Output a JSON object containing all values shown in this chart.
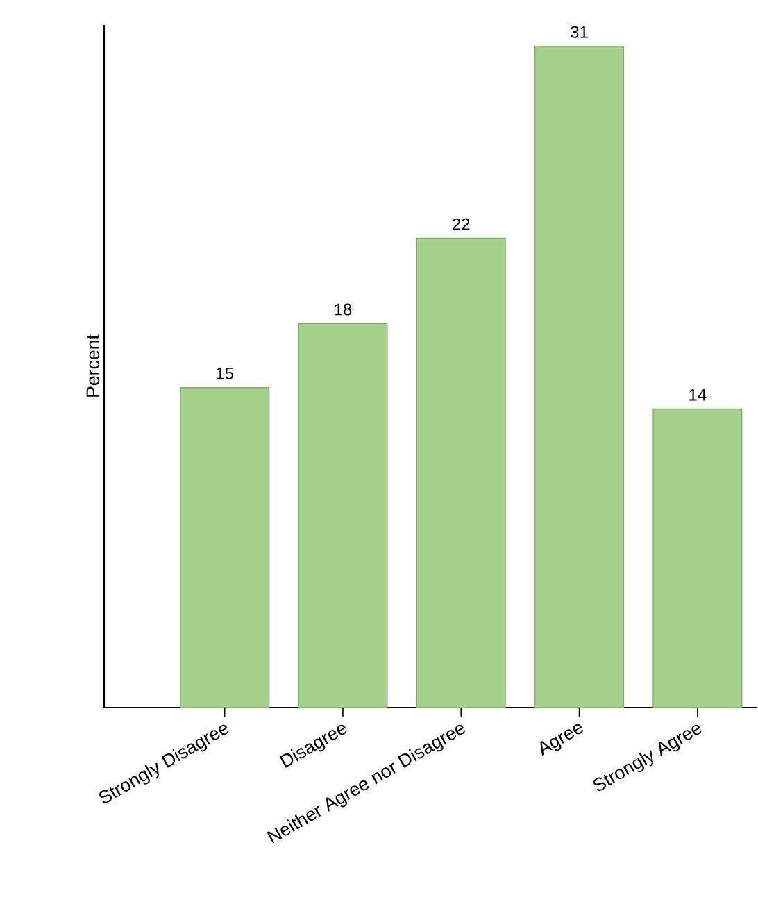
{
  "chart_data": {
    "type": "bar",
    "ylabel": "Percent",
    "categories": [
      "Strongly Disagree",
      "Disagree",
      "Neither Agree nor Disagree",
      "Agree",
      "Strongly Agree"
    ],
    "values": [
      15,
      18,
      22,
      31,
      14
    ],
    "color": "#a6d18d",
    "ylim": [
      0,
      32
    ],
    "data_labels": true
  }
}
